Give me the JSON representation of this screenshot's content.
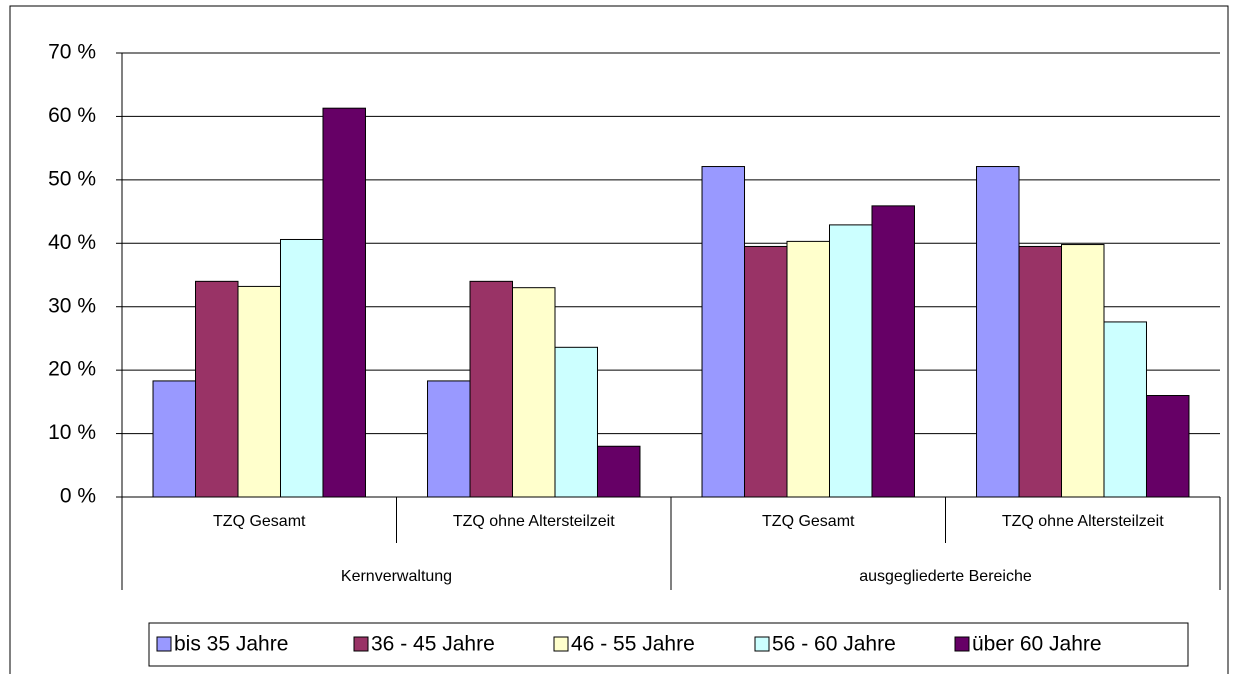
{
  "chart_data": {
    "type": "bar",
    "categories": [
      "TZQ Gesamt",
      "TZQ ohne Altersteilzeit",
      "TZQ Gesamt",
      "TZQ ohne Altersteilzeit"
    ],
    "category_groups": [
      "Kernverwaltung",
      "ausgegliederte Bereiche"
    ],
    "series": [
      {
        "name": "bis 35 Jahre",
        "color": "#9999ff",
        "values": [
          18.3,
          18.3,
          52.1,
          52.1
        ]
      },
      {
        "name": "36 - 45 Jahre",
        "color": "#993366",
        "values": [
          34,
          34,
          39.5,
          39.5
        ]
      },
      {
        "name": "46 - 55 Jahre",
        "color": "#ffffcc",
        "values": [
          33.2,
          33,
          40.3,
          39.8
        ]
      },
      {
        "name": "56 - 60 Jahre",
        "color": "#ccffff",
        "values": [
          40.6,
          23.6,
          42.9,
          27.6
        ]
      },
      {
        "name": "über 60 Jahre",
        "color": "#660066",
        "values": [
          61.3,
          8,
          45.9,
          16
        ]
      }
    ],
    "ylim": [
      0,
      70
    ],
    "yticks": [
      {
        "value": 0,
        "label": "0 %"
      },
      {
        "value": 10,
        "label": "10 %"
      },
      {
        "value": 20,
        "label": "20 %"
      },
      {
        "value": 30,
        "label": "30 %"
      },
      {
        "value": 40,
        "label": "40 %"
      },
      {
        "value": 50,
        "label": "50 %"
      },
      {
        "value": 60,
        "label": "60 %"
      },
      {
        "value": 70,
        "label": "70 %"
      }
    ],
    "grid": true,
    "legend": "bottom"
  }
}
